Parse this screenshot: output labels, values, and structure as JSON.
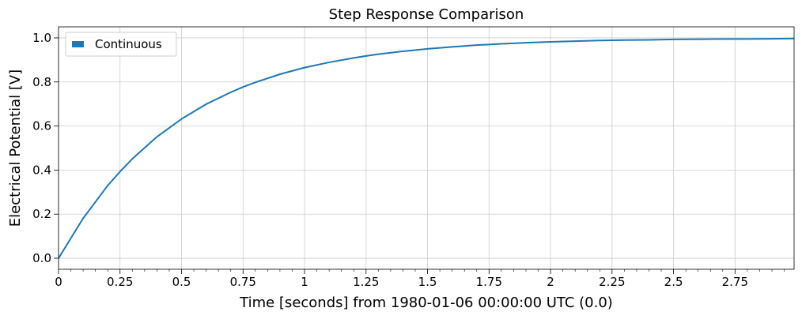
{
  "chart_data": {
    "type": "line",
    "title": "Step Response Comparison",
    "xlabel": "Time [seconds] from 1980-01-06 00:00:00 UTC (0.0)",
    "ylabel": "Electrical Potential [V]",
    "xlim": [
      0,
      2.99
    ],
    "ylim": [
      -0.05,
      1.05
    ],
    "x_ticks": [
      0,
      0.25,
      0.5,
      0.75,
      1,
      1.25,
      1.5,
      1.75,
      2,
      2.25,
      2.5,
      2.75
    ],
    "x_tick_labels": [
      "0",
      "0.25",
      "0.5",
      "0.75",
      "1",
      "1.25",
      "1.5",
      "1.75",
      "2",
      "2.25",
      "2.5",
      "2.75"
    ],
    "y_ticks": [
      0,
      0.2,
      0.4,
      0.6,
      0.8,
      1.0
    ],
    "y_tick_labels": [
      "0.0",
      "0.2",
      "0.4",
      "0.6",
      "0.8",
      "1.0"
    ],
    "grid": true,
    "legend": {
      "position": "top-left",
      "entries": [
        "Continuous"
      ]
    },
    "series": [
      {
        "name": "Continuous",
        "color": "#1f77b4",
        "x": [
          0,
          0.1,
          0.2,
          0.25,
          0.3,
          0.4,
          0.5,
          0.6,
          0.7,
          0.75,
          0.8,
          0.9,
          1.0,
          1.1,
          1.2,
          1.25,
          1.3,
          1.4,
          1.5,
          1.6,
          1.7,
          1.75,
          1.8,
          1.9,
          2.0,
          2.1,
          2.2,
          2.25,
          2.3,
          2.4,
          2.5,
          2.6,
          2.7,
          2.75,
          2.8,
          2.9,
          2.99
        ],
        "values": [
          0,
          0.181,
          0.33,
          0.393,
          0.451,
          0.551,
          0.632,
          0.699,
          0.753,
          0.777,
          0.798,
          0.835,
          0.865,
          0.889,
          0.909,
          0.918,
          0.926,
          0.939,
          0.95,
          0.959,
          0.967,
          0.97,
          0.973,
          0.978,
          0.982,
          0.985,
          0.988,
          0.989,
          0.99,
          0.991,
          0.993,
          0.994,
          0.995,
          0.995,
          0.995,
          0.996,
          0.997
        ]
      }
    ]
  }
}
